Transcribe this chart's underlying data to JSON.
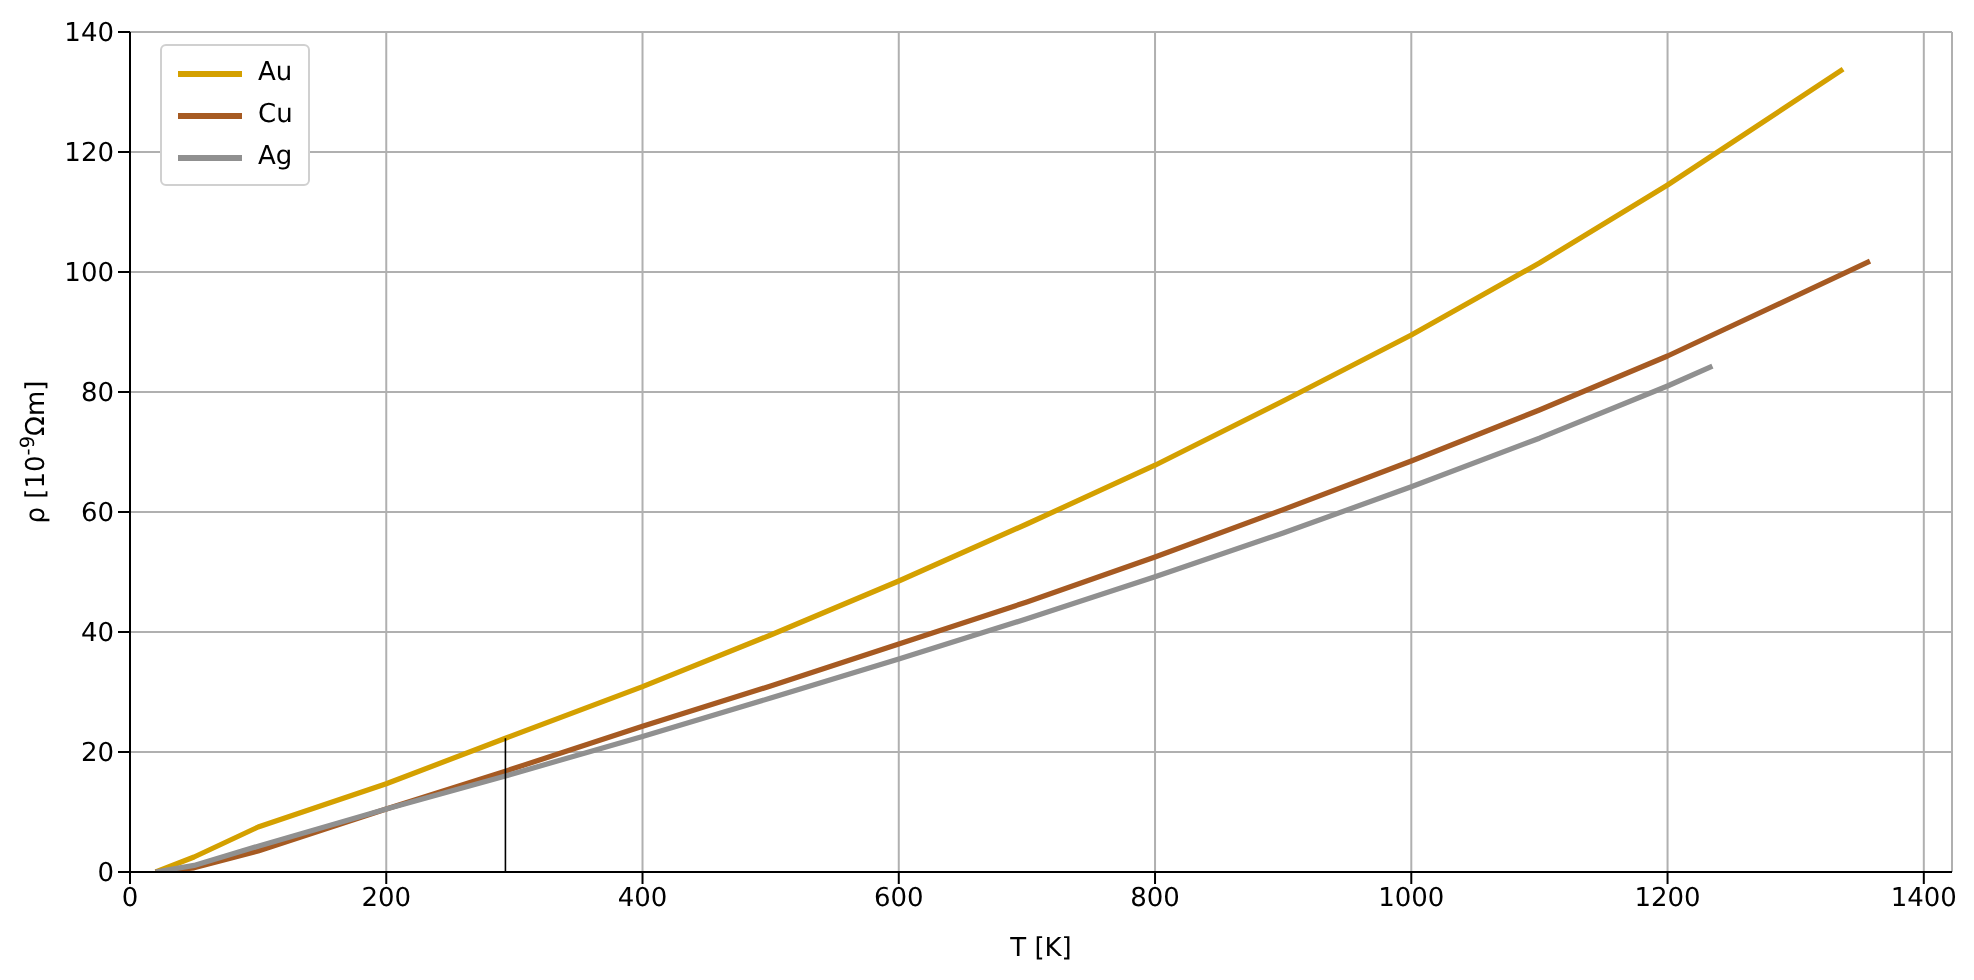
{
  "chart_data": {
    "type": "line",
    "xlabel": "T [K]",
    "ylabel": "ρ [10$^{-9}$Ωm]",
    "xlim": [
      0,
      1422
    ],
    "xticks": [
      0,
      200,
      400,
      600,
      800,
      1000,
      1200,
      1400
    ],
    "ylim": [
      0,
      140
    ],
    "yticks": [
      0,
      20,
      40,
      60,
      80,
      100,
      120,
      140
    ],
    "grid": true,
    "legend": "top left",
    "marker": "none",
    "line_style": "solid",
    "series": [
      {
        "name": "Au",
        "color": "#d4a000",
        "x": [
          20,
          50,
          100,
          200,
          293,
          400,
          500,
          600,
          700,
          800,
          900,
          1000,
          1100,
          1200,
          1337
        ],
        "values": [
          0,
          2.5,
          7.5,
          14.7,
          22.3,
          30.9,
          39.5,
          48.5,
          58,
          67.8,
          78.5,
          89.5,
          101.5,
          114.5,
          133.8
        ]
      },
      {
        "name": "Cu",
        "color": "#a65a22",
        "x": [
          20,
          50,
          100,
          200,
          293,
          400,
          500,
          600,
          700,
          800,
          900,
          1000,
          1100,
          1200,
          1358
        ],
        "values": [
          0,
          0.7,
          3.5,
          10.5,
          16.8,
          24.3,
          31,
          38,
          45,
          52.5,
          60.4,
          68.5,
          77,
          86,
          101.8
        ]
      },
      {
        "name": "Ag",
        "color": "#909090",
        "x": [
          20,
          50,
          100,
          200,
          293,
          400,
          500,
          600,
          700,
          800,
          900,
          1000,
          1100,
          1200,
          1235
        ],
        "values": [
          0,
          1.1,
          4.3,
          10.5,
          16,
          22.6,
          29,
          35.5,
          42.2,
          49.2,
          56.5,
          64.2,
          72.3,
          81,
          84.3
        ]
      },
      {
        "color": "#000000",
        "x": [
          293,
          293
        ],
        "values": [
          0,
          22.3
        ]
      }
    ]
  }
}
